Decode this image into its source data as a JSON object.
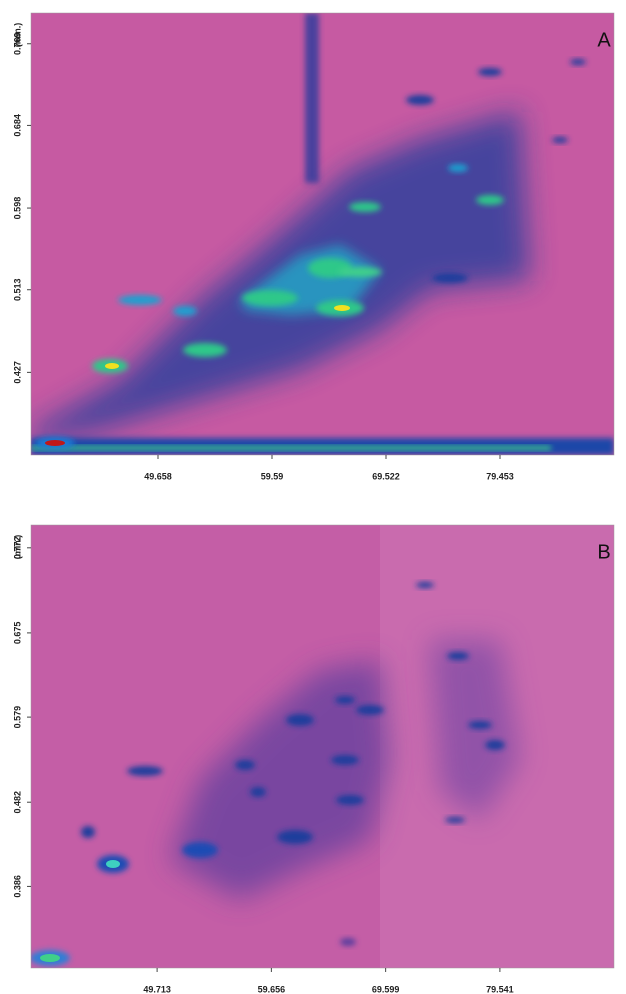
{
  "chart_data": [
    {
      "type": "contour",
      "panel_label": "A",
      "y_axis_label": "(min.)",
      "xlim": [
        38.594,
        89.385
      ],
      "xticks": [
        49.658,
        59.59,
        69.522,
        79.453
      ],
      "ylim": [
        0.341,
        0.801
      ],
      "yticks": [
        0.427,
        0.513,
        0.598,
        0.684,
        0.769
      ]
    },
    {
      "type": "contour",
      "panel_label": "B",
      "y_axis_label": "(min.)",
      "xlim": [
        38.74,
        89.47
      ],
      "xticks": [
        49.713,
        59.656,
        69.599,
        79.541
      ],
      "ylim": [
        0.293,
        0.798
      ],
      "yticks": [
        0.386,
        0.482,
        0.579,
        0.675,
        0.772
      ]
    }
  ]
}
